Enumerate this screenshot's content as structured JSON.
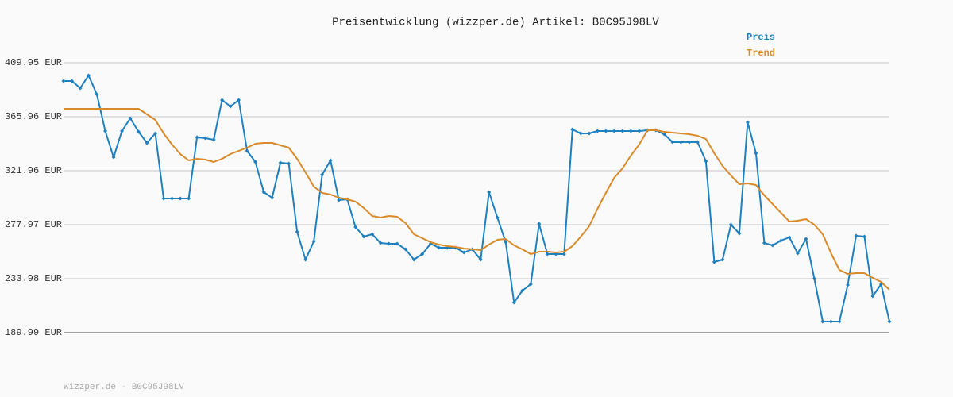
{
  "chart_data": {
    "type": "line",
    "title": "Preisentwicklung (wizzper.de) Artikel: B0C95J98LV",
    "ylim": [
      189.99,
      409.95
    ],
    "yticks": [
      {
        "value": 189.99,
        "label": "189.99 EUR"
      },
      {
        "value": 233.98,
        "label": "233.98 EUR"
      },
      {
        "value": 277.97,
        "label": "277.97 EUR"
      },
      {
        "value": 321.96,
        "label": "321.96 EUR"
      },
      {
        "value": 365.96,
        "label": "365.96 EUR"
      },
      {
        "value": 409.95,
        "label": "409.95 EUR"
      }
    ],
    "grid": true,
    "legend": "top-right",
    "series": [
      {
        "name": "Preis",
        "color": "#1f80bf",
        "markers": true,
        "values": [
          395.07,
          395.07,
          389.25,
          399.6,
          384.07,
          354.31,
          332.96,
          354.31,
          364.66,
          353.67,
          344.61,
          352.37,
          299.32,
          299.32,
          299.32,
          299.32,
          349.14,
          348.49,
          347.2,
          379.54,
          374.37,
          379.54,
          338.14,
          329.08,
          304.5,
          299.97,
          328.44,
          327.79,
          272.15,
          249.51,
          264.39,
          318.73,
          330.38,
          298.03,
          298.68,
          276.03,
          268.27,
          270.21,
          263.09,
          262.45,
          262.45,
          257.92,
          249.51,
          254.04,
          262.45,
          259.21,
          259.21,
          259.21,
          255.33,
          257.92,
          249.51,
          304.5,
          283.8,
          263.74,
          214.57,
          224.28,
          229.45,
          278.62,
          254.04,
          254.04,
          254.04,
          355.61,
          352.37,
          352.37,
          354.31,
          354.31,
          354.31,
          354.31,
          354.31,
          354.31,
          354.96,
          354.96,
          351.73,
          345.26,
          345.26,
          345.26,
          345.26,
          329.73,
          247.57,
          249.51,
          277.97,
          270.86,
          361.43,
          336.2,
          263.09,
          261.15,
          265.04,
          267.62,
          254.68,
          266.33,
          233.98,
          199.05,
          199.05,
          199.05,
          228.81,
          268.92,
          268.27,
          219.75,
          229.45,
          199.05
        ]
      },
      {
        "name": "Trend",
        "color": "#d98a2a",
        "markers": false,
        "values": [
          372.43,
          372.43,
          372.43,
          372.43,
          372.43,
          372.43,
          372.43,
          372.43,
          372.43,
          372.43,
          367.9,
          363.37,
          352.37,
          343.32,
          335.55,
          330.38,
          331.67,
          331.02,
          329.08,
          331.67,
          335.55,
          338.14,
          340.73,
          343.96,
          344.61,
          344.61,
          342.67,
          340.73,
          331.67,
          320.67,
          309.03,
          303.85,
          302.56,
          299.97,
          298.68,
          296.74,
          291.56,
          285.09,
          283.8,
          285.09,
          284.44,
          279.27,
          270.21,
          266.98,
          263.74,
          261.8,
          260.51,
          259.86,
          258.57,
          257.92,
          257.27,
          261.8,
          265.68,
          266.33,
          261.15,
          257.92,
          254.04,
          255.98,
          255.98,
          255.33,
          255.98,
          260.51,
          268.27,
          276.68,
          290.91,
          303.85,
          316.14,
          323.91,
          334.26,
          343.32,
          354.96,
          354.96,
          353.67,
          353.02,
          352.37,
          351.73,
          350.43,
          347.84,
          336.2,
          325.85,
          318.08,
          310.97,
          311.62,
          310.32,
          301.91,
          294.79,
          287.68,
          280.56,
          281.21,
          282.5,
          277.97,
          270.21,
          254.68,
          241.1,
          237.86,
          238.51,
          238.51,
          234.63,
          231.39,
          224.92
        ]
      }
    ]
  },
  "footer": "Wizzper.de - B0C95J98LV"
}
